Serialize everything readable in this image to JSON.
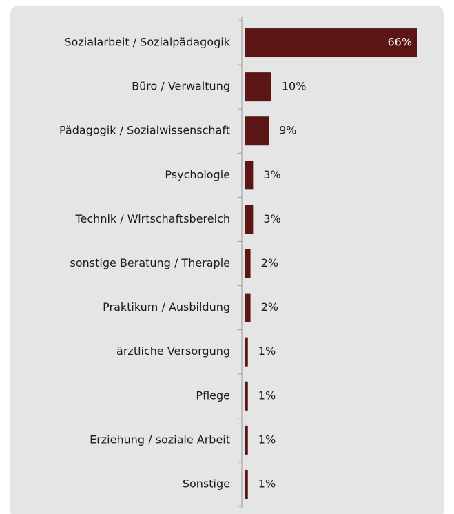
{
  "chart_data": {
    "type": "bar",
    "orientation": "horizontal",
    "categories": [
      "Sozialarbeit / Sozialpädagogik",
      "Büro / Verwaltung",
      "Pädagogik / Sozialwissenschaft",
      "Psychologie",
      "Technik / Wirtschaftsbereich",
      "sonstige Beratung / Therapie",
      "Praktikum / Ausbildung",
      "ärztliche Versorgung",
      "Pflege",
      "Erziehung / soziale Arbeit",
      "Sonstige"
    ],
    "values": [
      66,
      10,
      9,
      3,
      3,
      2,
      2,
      1,
      1,
      1,
      1
    ],
    "value_labels": [
      "66%",
      "10%",
      "9%",
      "3%",
      "3%",
      "2%",
      "2%",
      "1%",
      "1%",
      "1%",
      "1%"
    ],
    "color": "#5b1515"
  }
}
